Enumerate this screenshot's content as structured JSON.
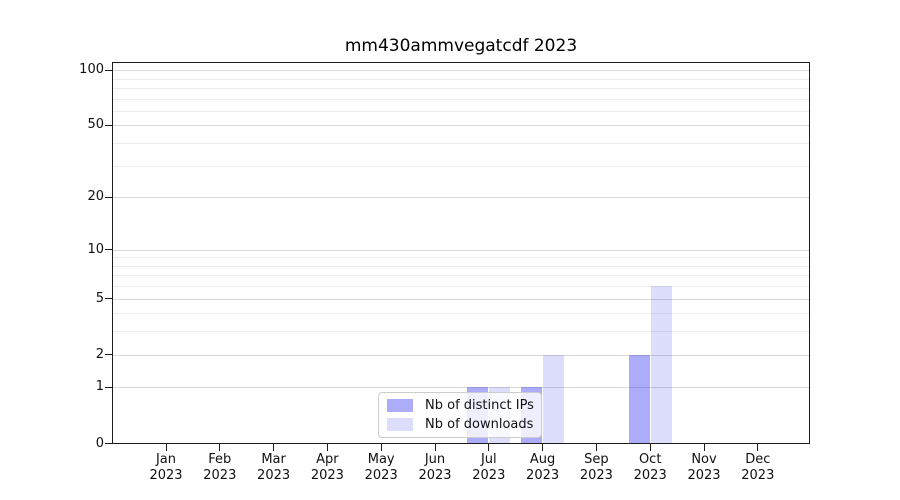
{
  "chart_data": {
    "type": "bar",
    "title": "mm430ammvegatcdf 2023",
    "categories": [
      "Jan",
      "Feb",
      "Mar",
      "Apr",
      "May",
      "Jun",
      "Jul",
      "Aug",
      "Sep",
      "Oct",
      "Nov",
      "Dec"
    ],
    "category_year": "2023",
    "series": [
      {
        "name": "Nb of distinct IPs",
        "color": "rgba(25,25,235,0.36)",
        "solid_color": "#acacf8",
        "values": [
          0,
          0,
          0,
          0,
          0,
          0,
          1,
          1,
          0,
          2,
          0,
          0
        ]
      },
      {
        "name": "Nb of downloads",
        "color": "rgba(25,25,235,0.15)",
        "solid_color": "#dcdcf8",
        "values": [
          0,
          0,
          0,
          0,
          0,
          0,
          1,
          2,
          0,
          6,
          0,
          0
        ]
      }
    ],
    "xlabel": "",
    "ylabel": "",
    "yscale": "log1p",
    "yticks": [
      0,
      1,
      2,
      5,
      10,
      20,
      50,
      100
    ],
    "ylim": [
      0,
      112
    ],
    "grid": "horizontal",
    "legend_position": "lower-center-inside",
    "colors": {
      "spine": "#1c1c1c",
      "grid_major": "#d9d9d9",
      "grid_minor": "#ececec",
      "legend_border": "#cccccc"
    }
  }
}
